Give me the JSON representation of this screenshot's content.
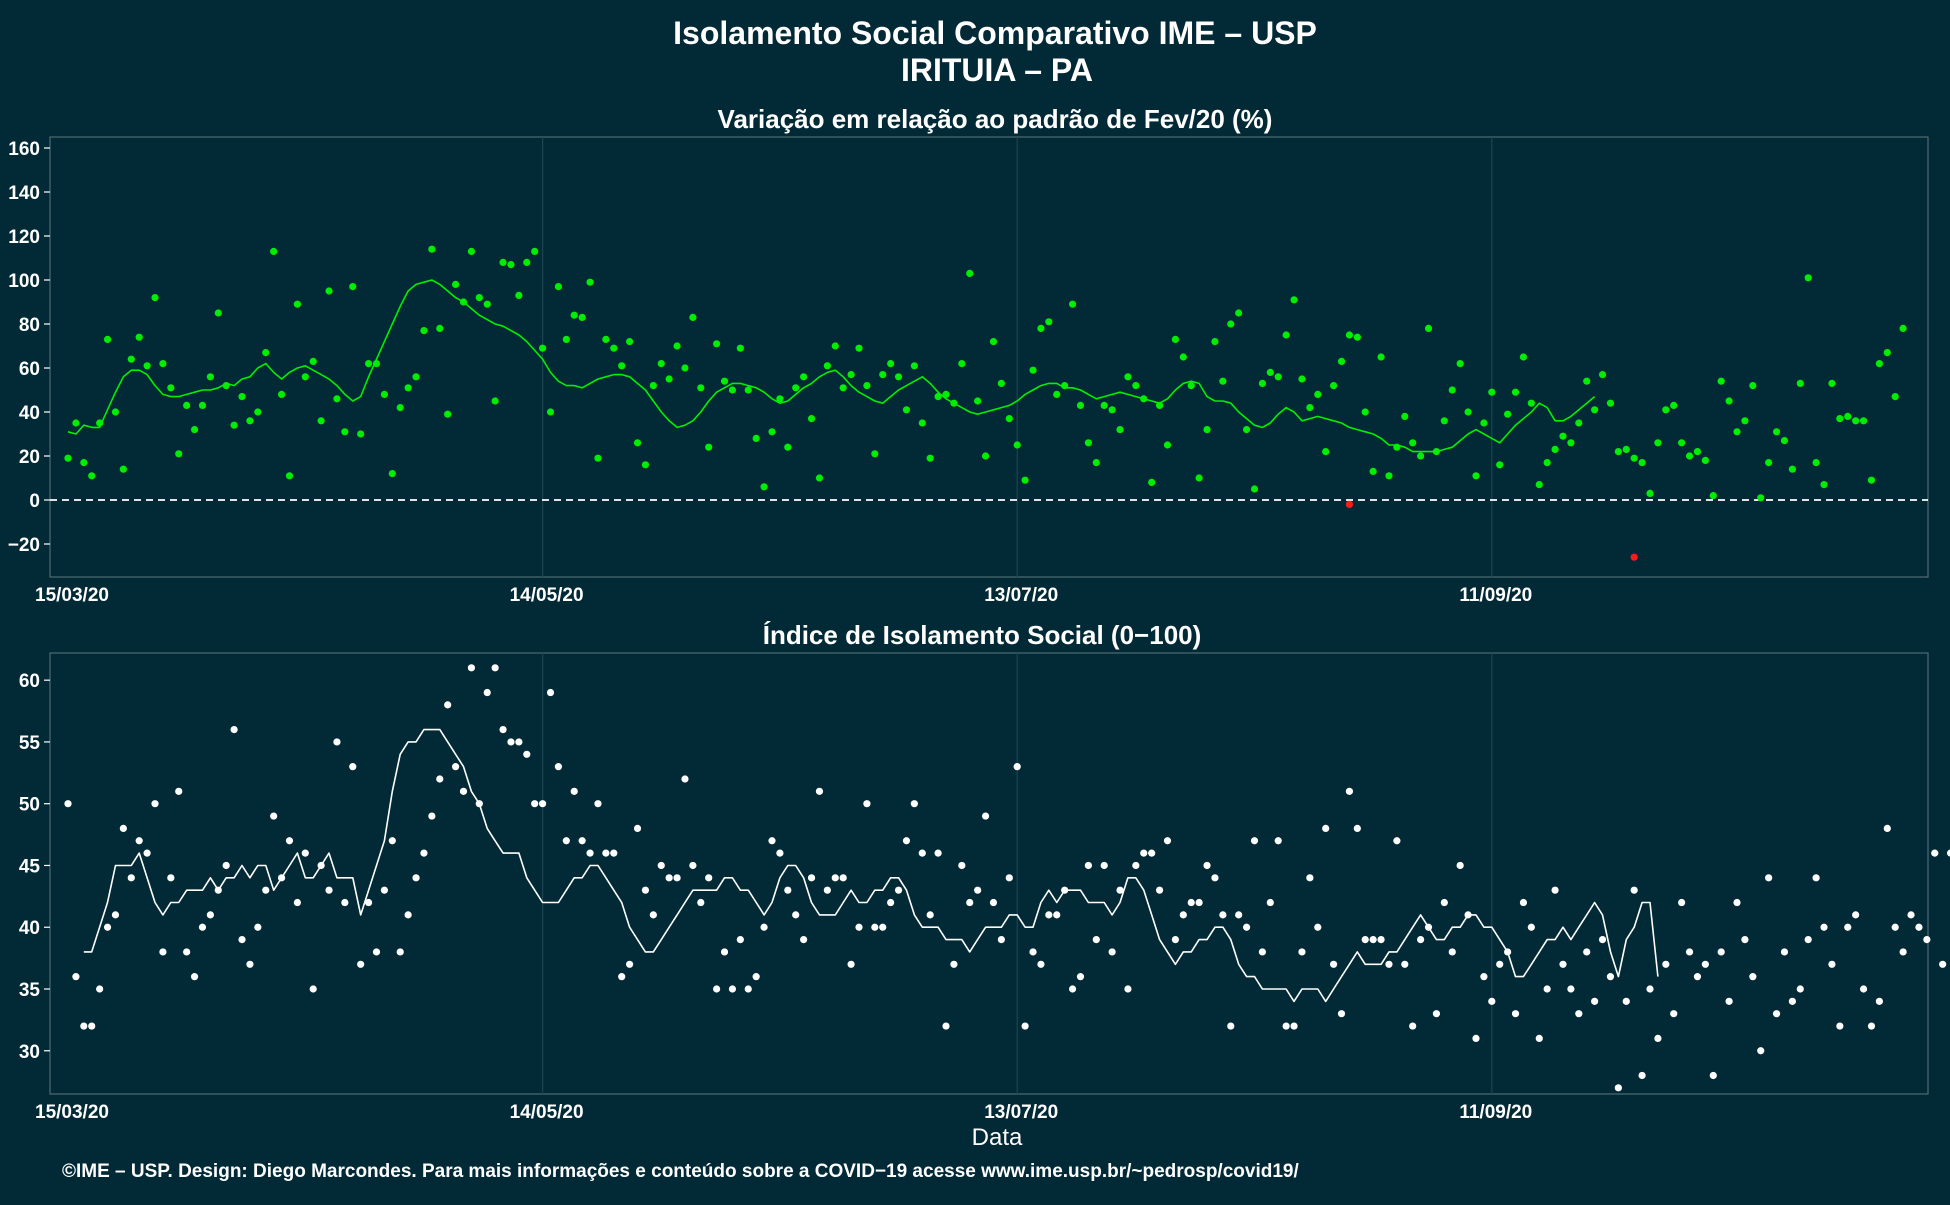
{
  "page": {
    "title_line1": "Isolamento Social Comparativo IME – USP",
    "title_line2": "IRITUIA – PA",
    "caption": "©IME – USP. Design: Diego Marcondes. Para mais informações e conteúdo sobre a COVID−19 acesse www.ime.usp.br/~pedrosp/covid19/"
  },
  "colors": {
    "background": "#022a36",
    "top_points": "#00ee00",
    "top_line": "#00ee00",
    "negative_points": "#ff1a1a",
    "bottom_points": "#ffffff",
    "bottom_line": "#ffffff",
    "text": "#ffffff"
  },
  "chart_data": [
    {
      "type": "scatter",
      "title": "Variação em relação ao padrão de Fev/20 (%)",
      "xlabel": "",
      "ylabel": "",
      "x_start": "15/03/20",
      "x_ticks": [
        "15/03/20",
        "14/05/20",
        "13/07/20",
        "11/09/20"
      ],
      "x_tick_days": [
        0,
        60,
        120,
        180
      ],
      "ylim": [
        -35,
        165
      ],
      "y_ticks": [
        -20,
        0,
        20,
        40,
        60,
        80,
        100,
        120,
        140,
        160
      ],
      "reference_line_y": 0,
      "grid": "x",
      "series": [
        {
          "style": "points",
          "values": [
            19,
            35,
            17,
            11,
            35,
            73,
            40,
            14,
            64,
            74,
            61,
            92,
            62,
            51,
            21,
            43,
            32,
            43,
            56,
            85,
            52,
            34,
            47,
            36,
            40,
            67,
            113,
            48,
            11,
            89,
            56,
            63,
            36,
            95,
            46,
            31,
            97,
            30,
            62,
            62,
            48,
            12,
            42,
            51,
            56,
            77,
            114,
            78,
            39,
            98,
            90,
            113,
            92,
            89,
            45,
            108,
            107,
            93,
            108,
            113,
            69,
            40,
            97,
            73,
            84,
            83,
            99,
            19,
            73,
            69,
            61,
            72,
            26,
            16,
            52,
            62,
            55,
            70,
            60,
            83,
            51,
            24,
            71,
            54,
            50,
            69,
            50,
            28,
            6,
            31,
            46,
            24,
            51,
            56,
            37,
            10,
            61,
            70,
            51,
            57,
            69,
            52,
            21,
            57,
            62,
            56,
            41,
            61,
            35,
            19,
            47,
            48,
            44,
            62,
            103,
            45,
            20,
            72,
            53,
            37,
            25,
            9,
            59,
            78,
            81,
            48,
            52,
            89,
            43,
            26,
            17,
            43,
            41,
            32,
            56,
            52,
            46,
            8,
            43,
            25,
            73,
            65,
            52,
            10,
            32,
            72,
            54,
            80,
            85,
            32,
            5,
            53,
            58,
            56,
            75,
            91,
            55,
            42,
            48,
            22,
            52,
            63,
            75,
            74,
            40,
            13,
            65,
            11,
            24,
            38,
            26,
            20,
            78,
            22,
            36,
            50,
            62,
            40,
            11,
            35,
            49,
            16,
            39,
            49,
            65,
            44,
            7,
            17,
            23,
            29,
            26,
            35,
            54,
            41,
            57,
            44,
            22,
            23,
            19,
            17,
            3,
            26,
            41,
            43,
            26,
            20,
            22,
            18,
            2,
            54,
            45,
            31,
            36,
            52,
            1,
            17,
            31,
            27,
            14,
            53,
            101,
            17,
            7,
            53,
            37,
            38,
            36,
            36,
            9,
            62,
            67,
            47,
            78
          ],
          "color": "#00ee00"
        },
        {
          "style": "points-negative",
          "points": [
            {
              "x": 162,
              "y": -2
            },
            {
              "x": 198,
              "y": -26
            }
          ],
          "color": "#ff1a1a"
        },
        {
          "style": "line",
          "name_visible": false,
          "values": [
            31,
            30,
            34,
            33,
            33,
            41,
            49,
            56,
            59,
            59,
            57,
            52,
            48,
            47,
            47,
            48,
            49,
            50,
            50,
            51,
            53,
            52,
            55,
            56,
            60,
            62,
            58,
            55,
            58,
            60,
            61,
            59,
            57,
            55,
            52,
            48,
            45,
            47,
            56,
            64,
            72,
            80,
            88,
            95,
            98,
            99,
            100,
            98,
            95,
            92,
            90,
            87,
            84,
            82,
            80,
            79,
            77,
            75,
            72,
            68,
            64,
            58,
            54,
            52,
            52,
            51,
            53,
            55,
            56,
            57,
            57,
            56,
            53,
            50,
            45,
            40,
            36,
            33,
            34,
            36,
            40,
            45,
            49,
            51,
            53,
            53,
            52,
            51,
            49,
            46,
            44,
            45,
            48,
            51,
            53,
            56,
            58,
            59,
            56,
            52,
            49,
            47,
            45,
            44,
            47,
            50,
            52,
            54,
            56,
            53,
            49,
            46,
            44,
            42,
            40,
            39,
            40,
            41,
            42,
            43,
            45,
            48,
            50,
            52,
            53,
            53,
            51,
            51,
            50,
            48,
            46,
            47,
            48,
            49,
            48,
            47,
            46,
            45,
            44,
            46,
            50,
            53,
            54,
            53,
            47,
            45,
            45,
            44,
            40,
            37,
            34,
            33,
            35,
            39,
            42,
            40,
            36,
            37,
            38,
            37,
            36,
            35,
            33,
            32,
            31,
            30,
            28,
            25,
            25,
            24,
            22,
            22,
            22,
            22,
            23,
            24,
            27,
            30,
            32,
            30,
            28,
            26,
            30,
            34,
            37,
            40,
            44,
            42,
            36,
            36,
            38,
            41,
            44,
            47
          ],
          "color": "#00ee00"
        }
      ]
    },
    {
      "type": "scatter",
      "title": "Índice de Isolamento Social (0−100)",
      "xlabel": "Data",
      "ylabel": "",
      "x_start": "15/03/20",
      "x_ticks": [
        "15/03/20",
        "14/05/20",
        "13/07/20",
        "11/09/20"
      ],
      "x_tick_days": [
        0,
        60,
        120,
        180
      ],
      "ylim": [
        26.5,
        62.2
      ],
      "y_ticks": [
        30,
        35,
        40,
        45,
        50,
        55,
        60
      ],
      "grid": "x",
      "series": [
        {
          "style": "points",
          "values": [
            50,
            36,
            32,
            32,
            35,
            40,
            41,
            48,
            44,
            47,
            46,
            50,
            38,
            44,
            51,
            38,
            36,
            40,
            41,
            43,
            45,
            56,
            39,
            37,
            40,
            43,
            49,
            44,
            47,
            42,
            46,
            35,
            45,
            43,
            55,
            42,
            53,
            37,
            42,
            38,
            43,
            47,
            38,
            41,
            44,
            46,
            49,
            52,
            58,
            53,
            51,
            61,
            50,
            59,
            61,
            56,
            55,
            55,
            54,
            50,
            50,
            59,
            53,
            47,
            51,
            47,
            46,
            50,
            46,
            46,
            36,
            37,
            48,
            43,
            41,
            45,
            44,
            44,
            52,
            45,
            42,
            44,
            35,
            38,
            35,
            39,
            35,
            36,
            40,
            47,
            46,
            43,
            41,
            39,
            44,
            51,
            43,
            44,
            44,
            37,
            40,
            50,
            40,
            40,
            42,
            43,
            47,
            50,
            46,
            41,
            46,
            32,
            37,
            45,
            42,
            43,
            49,
            42,
            39,
            44,
            53,
            32,
            38,
            37,
            41,
            41,
            43,
            35,
            36,
            45,
            39,
            45,
            38,
            43,
            35,
            45,
            46,
            46,
            43,
            47,
            39,
            41,
            42,
            42,
            45,
            44,
            41,
            32,
            41,
            40,
            47,
            38,
            42,
            47,
            32,
            32,
            38,
            44,
            40,
            48,
            37,
            33,
            51,
            48,
            39,
            39,
            39,
            37,
            47,
            37,
            32,
            39,
            40,
            33,
            42,
            38,
            45,
            41,
            31,
            36,
            34,
            37,
            38,
            33,
            42,
            40,
            31,
            35,
            43,
            37,
            35,
            33,
            38,
            34,
            39,
            36,
            27,
            34,
            43,
            28,
            35,
            31,
            37,
            33,
            42,
            38,
            36,
            37,
            28,
            38,
            34,
            42,
            39,
            36,
            30,
            44,
            33,
            38,
            34,
            35,
            39,
            44,
            40,
            37,
            32,
            40,
            41,
            35,
            32,
            34,
            48,
            40,
            38,
            41,
            40,
            39,
            46,
            37,
            46
          ],
          "color": "#ffffff"
        },
        {
          "style": "line",
          "values": [
            38,
            38,
            40,
            42,
            45,
            45,
            45,
            46,
            44,
            42,
            41,
            42,
            42,
            43,
            43,
            43,
            44,
            43,
            44,
            44,
            45,
            44,
            45,
            45,
            43,
            44,
            45,
            46,
            44,
            44,
            45,
            46,
            44,
            44,
            44,
            41,
            43,
            45,
            47,
            51,
            54,
            55,
            55,
            56,
            56,
            56,
            55,
            54,
            53,
            51,
            50,
            48,
            47,
            46,
            46,
            46,
            44,
            43,
            42,
            42,
            42,
            43,
            44,
            44,
            45,
            45,
            44,
            43,
            42,
            40,
            39,
            38,
            38,
            39,
            40,
            41,
            42,
            43,
            43,
            43,
            43,
            44,
            44,
            43,
            43,
            42,
            41,
            42,
            44,
            45,
            45,
            44,
            42,
            41,
            41,
            41,
            42,
            43,
            42,
            42,
            43,
            43,
            44,
            44,
            43,
            41,
            40,
            40,
            40,
            39,
            39,
            39,
            38,
            39,
            40,
            40,
            40,
            41,
            41,
            40,
            40,
            42,
            43,
            42,
            43,
            43,
            43,
            42,
            42,
            42,
            41,
            42,
            44,
            44,
            43,
            41,
            39,
            38,
            37,
            38,
            38,
            39,
            39,
            40,
            40,
            39,
            37,
            36,
            36,
            35,
            35,
            35,
            35,
            34,
            35,
            35,
            35,
            34,
            35,
            36,
            37,
            38,
            37,
            37,
            37,
            38,
            38,
            39,
            40,
            41,
            40,
            39,
            39,
            40,
            40,
            41,
            41,
            40,
            40,
            39,
            38,
            36,
            36,
            37,
            38,
            39,
            39,
            40,
            39,
            40,
            41,
            42,
            41,
            38,
            36,
            39,
            40,
            42,
            42,
            36
          ],
          "color": "#ffffff"
        }
      ]
    }
  ]
}
